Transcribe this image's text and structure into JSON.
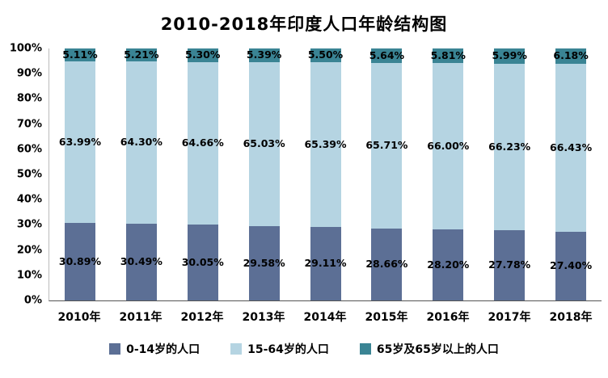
{
  "chart_data": {
    "type": "bar",
    "stacked": true,
    "percent_stacked": true,
    "title": "2010-2018年印度人口年龄结构图",
    "categories": [
      "2010年",
      "2011年",
      "2012年",
      "2013年",
      "2014年",
      "2015年",
      "2016年",
      "2017年",
      "2018年"
    ],
    "series": [
      {
        "name": "0-14岁的人口",
        "color": "#5c6f95",
        "values": [
          30.89,
          30.49,
          30.05,
          29.58,
          29.11,
          28.66,
          28.2,
          27.78,
          27.4
        ]
      },
      {
        "name": "15-64岁的人口",
        "color": "#b5d4e2",
        "values": [
          63.99,
          64.3,
          64.66,
          65.03,
          65.39,
          65.71,
          66.0,
          66.23,
          66.43
        ]
      },
      {
        "name": "65岁及65岁以上的人口",
        "color": "#3a8494",
        "values": [
          5.11,
          5.21,
          5.3,
          5.39,
          5.5,
          5.64,
          5.81,
          5.99,
          6.18
        ]
      }
    ],
    "y_ticks": [
      "0%",
      "10%",
      "20%",
      "30%",
      "40%",
      "50%",
      "60%",
      "70%",
      "80%",
      "90%",
      "100%"
    ],
    "ylim": [
      0,
      100
    ],
    "value_label_format": "0.00%",
    "legend_position": "bottom",
    "grid": false
  }
}
